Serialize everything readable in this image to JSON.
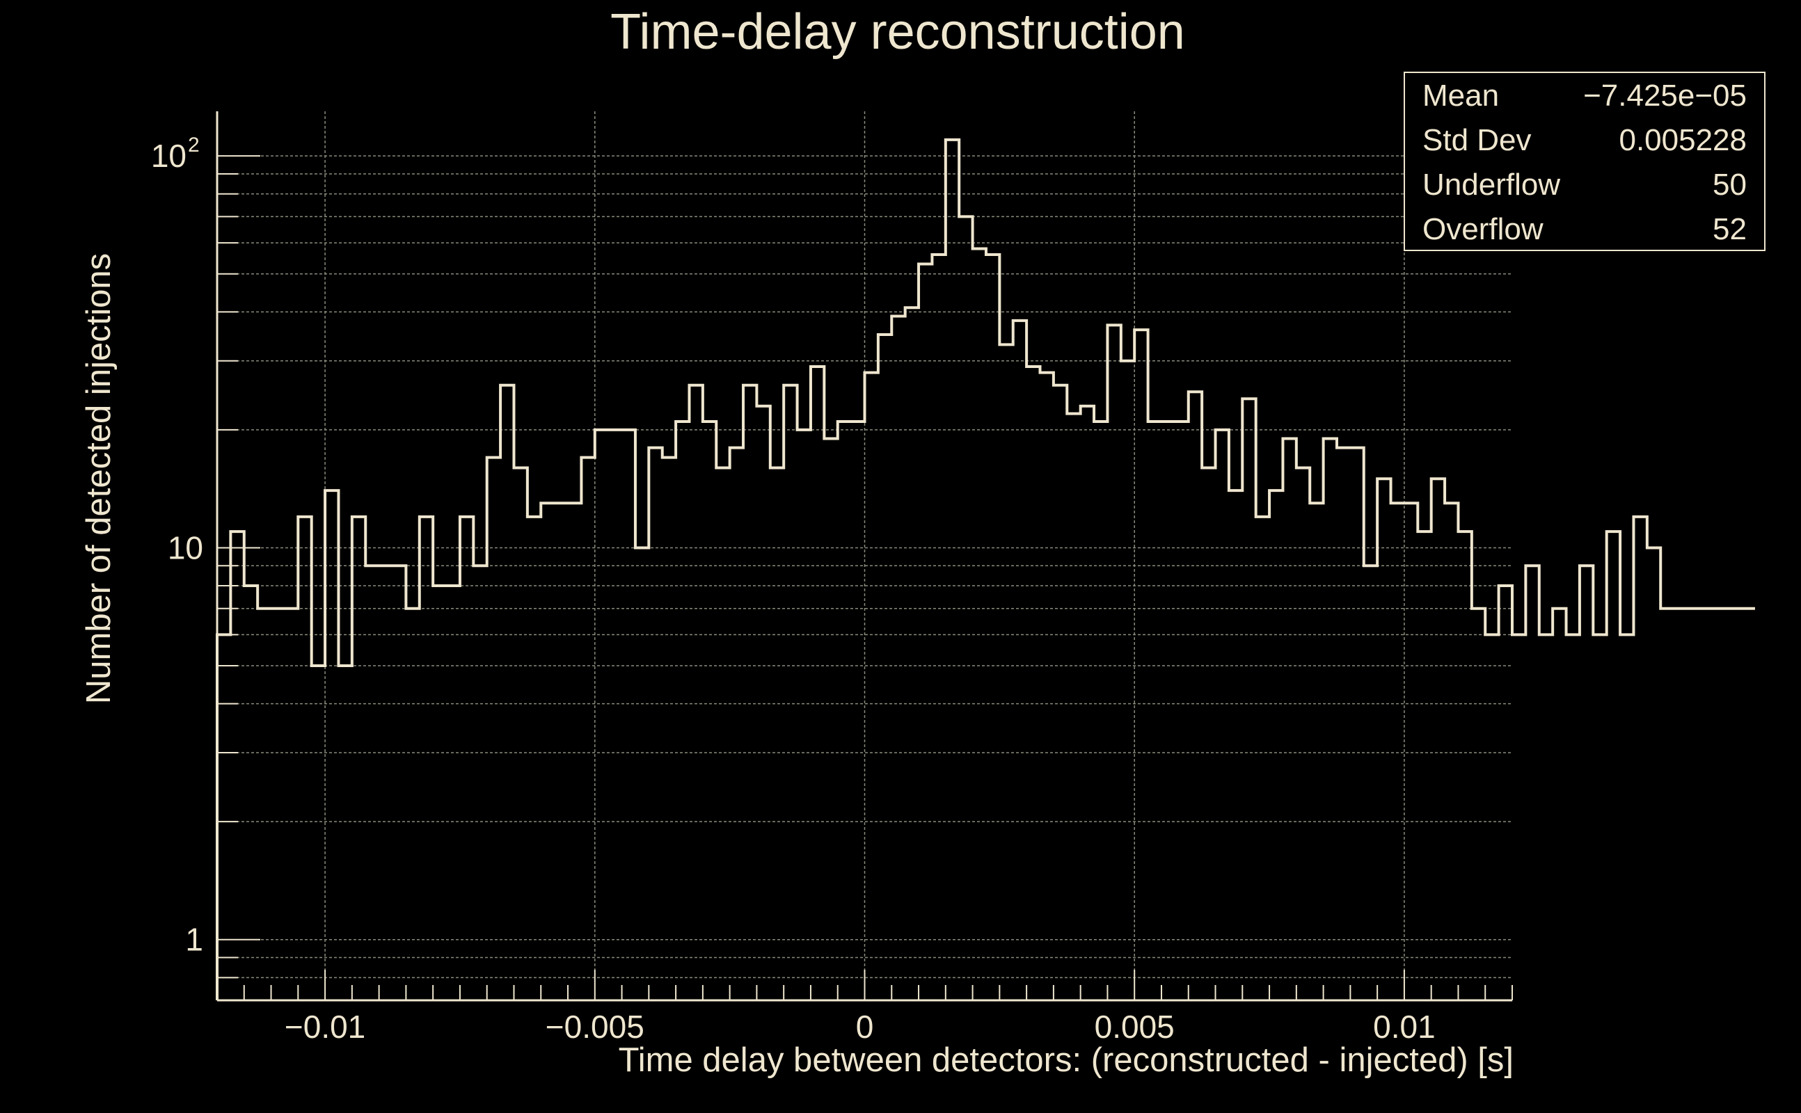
{
  "chart_data": {
    "type": "histogram",
    "title": "Time-delay reconstruction",
    "xlabel": "Time delay between detectors: (reconstructed - injected) [s]",
    "ylabel": "Number of detected injections",
    "xlim": [
      -0.012,
      0.012
    ],
    "ylim": [
      0.7,
      130
    ],
    "y_scale": "log",
    "grid": true,
    "x_ticks": [
      {
        "value": -0.01,
        "label": "−0.01"
      },
      {
        "value": -0.005,
        "label": "−0.005"
      },
      {
        "value": 0,
        "label": "0"
      },
      {
        "value": 0.005,
        "label": "0.005"
      },
      {
        "value": 0.01,
        "label": "0.01"
      }
    ],
    "y_ticks": [
      {
        "value": 1,
        "label": "1"
      },
      {
        "value": 10,
        "label": "10"
      },
      {
        "value": 100,
        "label": "10",
        "sup": "2"
      }
    ],
    "bin_width": 0.00025,
    "bin_start": -0.012,
    "counts": [
      6,
      11,
      8,
      7,
      7,
      7,
      12,
      5,
      14,
      5,
      12,
      9,
      9,
      9,
      7,
      12,
      8,
      8,
      12,
      9,
      17,
      26,
      16,
      12,
      13,
      13,
      13,
      17,
      20,
      20,
      20,
      10,
      18,
      17,
      21,
      26,
      21,
      16,
      18,
      26,
      23,
      16,
      26,
      20,
      29,
      19,
      21,
      21,
      28,
      35,
      39,
      41,
      53,
      56,
      110,
      70,
      58,
      56,
      33,
      38,
      29,
      28,
      26,
      22,
      23,
      21,
      37,
      30,
      36,
      21,
      21,
      21,
      25,
      16,
      20,
      14,
      24,
      12,
      14,
      19,
      16,
      13,
      19,
      18,
      18,
      9,
      15,
      13,
      13,
      11,
      15,
      13,
      11,
      7,
      6,
      8,
      6,
      9,
      6,
      7,
      6,
      9,
      6,
      11,
      6,
      12,
      10,
      7,
      7,
      7,
      7,
      7,
      7,
      7
    ],
    "series": [
      {
        "name": "",
        "color": "#efe6cf"
      }
    ]
  },
  "stats": {
    "rows": [
      {
        "label": "Mean",
        "value": "−7.425e−05"
      },
      {
        "label": "Std Dev",
        "value": "0.005228"
      },
      {
        "label": "Underflow",
        "value": "50"
      },
      {
        "label": "Overflow",
        "value": "52"
      }
    ]
  }
}
